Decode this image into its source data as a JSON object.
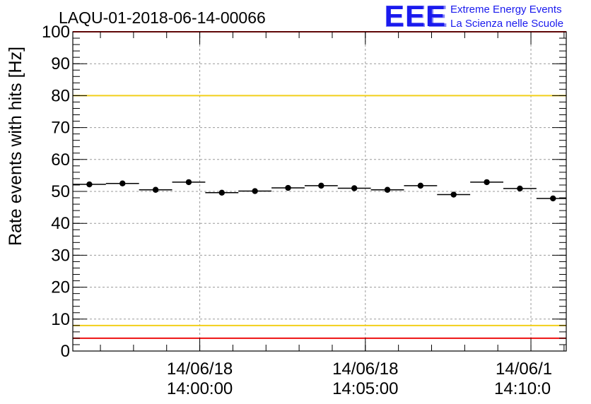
{
  "chart_data": {
    "type": "scatter",
    "title": "LAQU-01-2018-06-14-00066",
    "ylabel": "Rate events with hits [Hz]",
    "xlabel": "",
    "ylim": [
      0,
      100
    ],
    "y_ticks": [
      "0",
      "10",
      "20",
      "30",
      "40",
      "50",
      "60",
      "70",
      "80",
      "90",
      "100"
    ],
    "x_axis": "time",
    "xlim": [
      "13:56:10",
      "14:11:04"
    ],
    "x_ticks": [
      {
        "date": "14/06/18",
        "time": "14:00:00"
      },
      {
        "date": "14/06/18",
        "time": "14:05:00"
      },
      {
        "date": "14/06/1",
        "time": "14:10:0"
      }
    ],
    "grid": true,
    "reference_lines": [
      {
        "y": 100,
        "color": "#ee1111"
      },
      {
        "y": 80,
        "color": "#f2cf1a"
      },
      {
        "y": 8,
        "color": "#f2cf1a"
      },
      {
        "y": 4,
        "color": "#ee1111"
      }
    ],
    "points": [
      {
        "x": "13:56:40",
        "x_half_width_s": 30,
        "y": 52.2
      },
      {
        "x": "13:57:40",
        "x_half_width_s": 30,
        "y": 52.5
      },
      {
        "x": "13:58:40",
        "x_half_width_s": 30,
        "y": 50.5
      },
      {
        "x": "13:59:40",
        "x_half_width_s": 30,
        "y": 52.9
      },
      {
        "x": "14:00:40",
        "x_half_width_s": 30,
        "y": 49.6
      },
      {
        "x": "14:01:40",
        "x_half_width_s": 30,
        "y": 50.1
      },
      {
        "x": "14:02:40",
        "x_half_width_s": 30,
        "y": 51.1
      },
      {
        "x": "14:03:40",
        "x_half_width_s": 30,
        "y": 51.8
      },
      {
        "x": "14:04:40",
        "x_half_width_s": 30,
        "y": 51.0
      },
      {
        "x": "14:05:40",
        "x_half_width_s": 30,
        "y": 50.5
      },
      {
        "x": "14:06:40",
        "x_half_width_s": 30,
        "y": 51.8
      },
      {
        "x": "14:07:40",
        "x_half_width_s": 30,
        "y": 49.0
      },
      {
        "x": "14:08:40",
        "x_half_width_s": 30,
        "y": 52.9
      },
      {
        "x": "14:09:40",
        "x_half_width_s": 30,
        "y": 50.9
      },
      {
        "x": "14:10:40",
        "x_half_width_s": 30,
        "y": 47.8
      }
    ],
    "marker_color": "#000000"
  },
  "logo": {
    "mark": "EEE",
    "line1": "Extreme Energy Events",
    "line2": "La Scienza nelle Scuole",
    "color": "#1a1aee"
  }
}
